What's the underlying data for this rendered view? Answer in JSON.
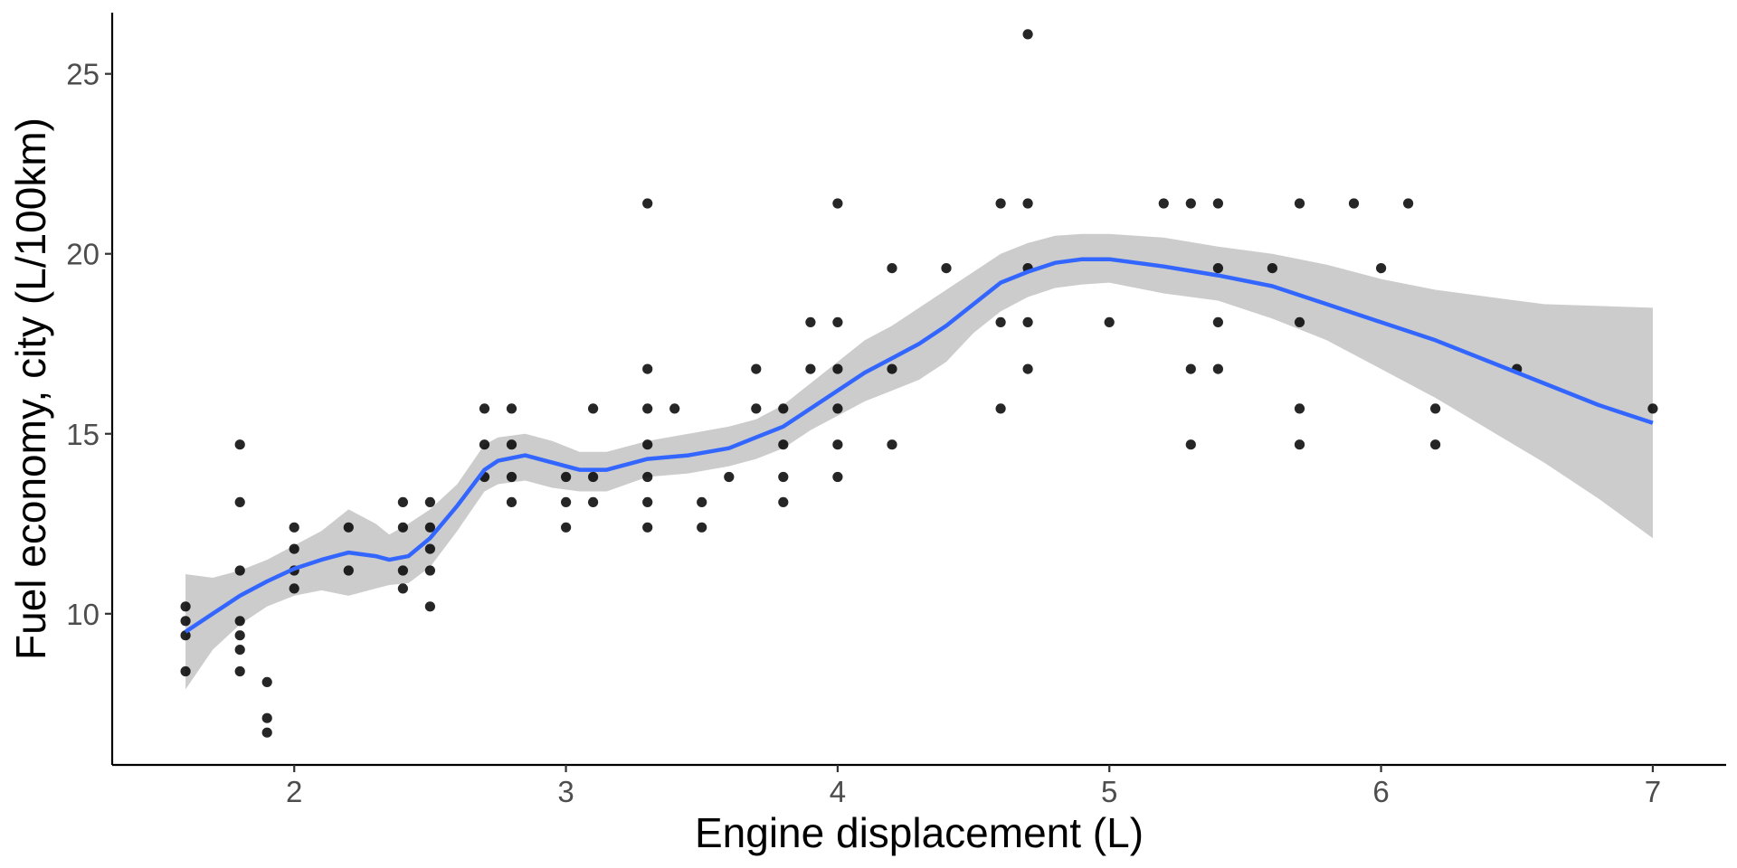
{
  "chart_data": {
    "type": "scatter",
    "title": "",
    "xlabel": "Engine displacement (L)",
    "ylabel": "Fuel economy, city (L/100km)",
    "xlim": [
      1.33,
      7.27
    ],
    "ylim": [
      5.8,
      26.7
    ],
    "xticks": [
      "2",
      "3",
      "4",
      "5",
      "6",
      "7"
    ],
    "yticks": [
      "10",
      "15",
      "20",
      "25"
    ],
    "grid": false,
    "colors": {
      "points": "#000000",
      "smooth_line": "#3366ff",
      "confidence_band": "#cccccc",
      "axis": "#000000",
      "tick_labels": "#4d4d4d"
    },
    "points": [
      [
        1.6,
        8.4
      ],
      [
        1.6,
        9.4
      ],
      [
        1.6,
        9.8
      ],
      [
        1.6,
        10.2
      ],
      [
        1.8,
        8.4
      ],
      [
        1.8,
        9.0
      ],
      [
        1.8,
        9.4
      ],
      [
        1.8,
        9.8
      ],
      [
        1.8,
        11.2
      ],
      [
        1.8,
        13.1
      ],
      [
        1.8,
        14.7
      ],
      [
        1.9,
        6.7
      ],
      [
        1.9,
        7.1
      ],
      [
        1.9,
        8.1
      ],
      [
        2.0,
        10.7
      ],
      [
        2.0,
        11.2
      ],
      [
        2.0,
        11.8
      ],
      [
        2.0,
        12.4
      ],
      [
        2.2,
        11.2
      ],
      [
        2.2,
        12.4
      ],
      [
        2.4,
        10.7
      ],
      [
        2.4,
        11.2
      ],
      [
        2.4,
        12.4
      ],
      [
        2.4,
        13.1
      ],
      [
        2.5,
        10.2
      ],
      [
        2.5,
        11.2
      ],
      [
        2.5,
        11.8
      ],
      [
        2.5,
        12.4
      ],
      [
        2.5,
        13.1
      ],
      [
        2.7,
        13.8
      ],
      [
        2.7,
        14.7
      ],
      [
        2.7,
        15.7
      ],
      [
        2.8,
        13.1
      ],
      [
        2.8,
        13.8
      ],
      [
        2.8,
        14.7
      ],
      [
        2.8,
        15.7
      ],
      [
        3.0,
        12.4
      ],
      [
        3.0,
        13.1
      ],
      [
        3.0,
        13.8
      ],
      [
        3.1,
        13.1
      ],
      [
        3.1,
        13.8
      ],
      [
        3.1,
        15.7
      ],
      [
        3.3,
        12.4
      ],
      [
        3.3,
        13.1
      ],
      [
        3.3,
        13.8
      ],
      [
        3.3,
        14.7
      ],
      [
        3.3,
        15.7
      ],
      [
        3.3,
        16.8
      ],
      [
        3.3,
        21.4
      ],
      [
        3.4,
        15.7
      ],
      [
        3.5,
        12.4
      ],
      [
        3.5,
        13.1
      ],
      [
        3.6,
        13.8
      ],
      [
        3.7,
        15.7
      ],
      [
        3.7,
        16.8
      ],
      [
        3.8,
        13.1
      ],
      [
        3.8,
        13.8
      ],
      [
        3.8,
        14.7
      ],
      [
        3.8,
        15.7
      ],
      [
        3.9,
        16.8
      ],
      [
        3.9,
        18.1
      ],
      [
        4.0,
        13.8
      ],
      [
        4.0,
        14.7
      ],
      [
        4.0,
        15.7
      ],
      [
        4.0,
        16.8
      ],
      [
        4.0,
        18.1
      ],
      [
        4.0,
        21.4
      ],
      [
        4.2,
        14.7
      ],
      [
        4.2,
        16.8
      ],
      [
        4.2,
        19.6
      ],
      [
        4.4,
        19.6
      ],
      [
        4.6,
        15.7
      ],
      [
        4.6,
        18.1
      ],
      [
        4.6,
        21.4
      ],
      [
        4.7,
        16.8
      ],
      [
        4.7,
        18.1
      ],
      [
        4.7,
        19.6
      ],
      [
        4.7,
        21.4
      ],
      [
        4.7,
        26.1
      ],
      [
        5.0,
        18.1
      ],
      [
        5.2,
        21.4
      ],
      [
        5.3,
        14.7
      ],
      [
        5.3,
        16.8
      ],
      [
        5.3,
        21.4
      ],
      [
        5.4,
        16.8
      ],
      [
        5.4,
        18.1
      ],
      [
        5.4,
        19.6
      ],
      [
        5.4,
        21.4
      ],
      [
        5.6,
        19.6
      ],
      [
        5.7,
        14.7
      ],
      [
        5.7,
        15.7
      ],
      [
        5.7,
        18.1
      ],
      [
        5.7,
        21.4
      ],
      [
        5.9,
        21.4
      ],
      [
        6.0,
        19.6
      ],
      [
        6.1,
        21.4
      ],
      [
        6.2,
        14.7
      ],
      [
        6.2,
        15.7
      ],
      [
        6.5,
        16.8
      ],
      [
        7.0,
        15.7
      ]
    ],
    "smooth": [
      [
        1.6,
        9.5
      ],
      [
        1.7,
        10.0
      ],
      [
        1.8,
        10.5
      ],
      [
        1.9,
        10.9
      ],
      [
        2.0,
        11.25
      ],
      [
        2.1,
        11.5
      ],
      [
        2.2,
        11.7
      ],
      [
        2.3,
        11.6
      ],
      [
        2.35,
        11.5
      ],
      [
        2.42,
        11.6
      ],
      [
        2.5,
        12.1
      ],
      [
        2.6,
        13.0
      ],
      [
        2.7,
        14.0
      ],
      [
        2.75,
        14.25
      ],
      [
        2.85,
        14.4
      ],
      [
        2.95,
        14.2
      ],
      [
        3.05,
        14.0
      ],
      [
        3.15,
        14.0
      ],
      [
        3.3,
        14.3
      ],
      [
        3.45,
        14.4
      ],
      [
        3.6,
        14.6
      ],
      [
        3.7,
        14.9
      ],
      [
        3.8,
        15.2
      ],
      [
        3.9,
        15.7
      ],
      [
        4.0,
        16.2
      ],
      [
        4.1,
        16.7
      ],
      [
        4.2,
        17.1
      ],
      [
        4.3,
        17.5
      ],
      [
        4.4,
        18.0
      ],
      [
        4.5,
        18.6
      ],
      [
        4.6,
        19.2
      ],
      [
        4.7,
        19.5
      ],
      [
        4.8,
        19.75
      ],
      [
        4.9,
        19.85
      ],
      [
        5.0,
        19.85
      ],
      [
        5.2,
        19.65
      ],
      [
        5.4,
        19.4
      ],
      [
        5.6,
        19.1
      ],
      [
        5.8,
        18.6
      ],
      [
        6.0,
        18.1
      ],
      [
        6.2,
        17.6
      ],
      [
        6.4,
        17.0
      ],
      [
        6.6,
        16.4
      ],
      [
        6.8,
        15.8
      ],
      [
        7.0,
        15.3
      ]
    ],
    "band_upper": [
      [
        1.6,
        11.1
      ],
      [
        1.7,
        11.0
      ],
      [
        1.8,
        11.2
      ],
      [
        1.9,
        11.5
      ],
      [
        2.0,
        11.9
      ],
      [
        2.1,
        12.3
      ],
      [
        2.2,
        12.9
      ],
      [
        2.3,
        12.5
      ],
      [
        2.35,
        12.2
      ],
      [
        2.42,
        12.5
      ],
      [
        2.5,
        12.9
      ],
      [
        2.6,
        13.6
      ],
      [
        2.7,
        14.7
      ],
      [
        2.75,
        14.9
      ],
      [
        2.85,
        15.0
      ],
      [
        2.95,
        14.8
      ],
      [
        3.05,
        14.5
      ],
      [
        3.15,
        14.5
      ],
      [
        3.3,
        14.8
      ],
      [
        3.45,
        15.0
      ],
      [
        3.6,
        15.2
      ],
      [
        3.7,
        15.4
      ],
      [
        3.8,
        15.8
      ],
      [
        3.9,
        16.4
      ],
      [
        4.0,
        17.0
      ],
      [
        4.1,
        17.6
      ],
      [
        4.2,
        18.0
      ],
      [
        4.3,
        18.5
      ],
      [
        4.4,
        19.0
      ],
      [
        4.5,
        19.5
      ],
      [
        4.6,
        20.0
      ],
      [
        4.7,
        20.3
      ],
      [
        4.8,
        20.5
      ],
      [
        4.9,
        20.55
      ],
      [
        5.0,
        20.55
      ],
      [
        5.2,
        20.45
      ],
      [
        5.4,
        20.2
      ],
      [
        5.6,
        20.0
      ],
      [
        5.8,
        19.7
      ],
      [
        6.0,
        19.3
      ],
      [
        6.2,
        19.0
      ],
      [
        6.4,
        18.8
      ],
      [
        6.6,
        18.6
      ],
      [
        6.8,
        18.55
      ],
      [
        7.0,
        18.5
      ]
    ],
    "band_lower": [
      [
        1.6,
        7.9
      ],
      [
        1.7,
        9.0
      ],
      [
        1.8,
        9.7
      ],
      [
        1.9,
        10.2
      ],
      [
        2.0,
        10.5
      ],
      [
        2.1,
        10.65
      ],
      [
        2.2,
        10.5
      ],
      [
        2.3,
        10.7
      ],
      [
        2.35,
        10.8
      ],
      [
        2.42,
        10.85
      ],
      [
        2.5,
        11.3
      ],
      [
        2.6,
        12.3
      ],
      [
        2.7,
        13.4
      ],
      [
        2.75,
        13.6
      ],
      [
        2.85,
        13.7
      ],
      [
        2.95,
        13.5
      ],
      [
        3.05,
        13.4
      ],
      [
        3.15,
        13.4
      ],
      [
        3.3,
        13.8
      ],
      [
        3.45,
        13.9
      ],
      [
        3.6,
        14.1
      ],
      [
        3.7,
        14.3
      ],
      [
        3.8,
        14.6
      ],
      [
        3.9,
        15.1
      ],
      [
        4.0,
        15.5
      ],
      [
        4.1,
        15.9
      ],
      [
        4.2,
        16.2
      ],
      [
        4.3,
        16.5
      ],
      [
        4.4,
        17.0
      ],
      [
        4.5,
        17.8
      ],
      [
        4.6,
        18.4
      ],
      [
        4.7,
        18.8
      ],
      [
        4.8,
        19.05
      ],
      [
        4.9,
        19.15
      ],
      [
        5.0,
        19.2
      ],
      [
        5.2,
        18.9
      ],
      [
        5.4,
        18.7
      ],
      [
        5.6,
        18.2
      ],
      [
        5.8,
        17.6
      ],
      [
        6.0,
        16.8
      ],
      [
        6.2,
        16.0
      ],
      [
        6.4,
        15.1
      ],
      [
        6.6,
        14.2
      ],
      [
        6.8,
        13.2
      ],
      [
        7.0,
        12.1
      ]
    ]
  }
}
